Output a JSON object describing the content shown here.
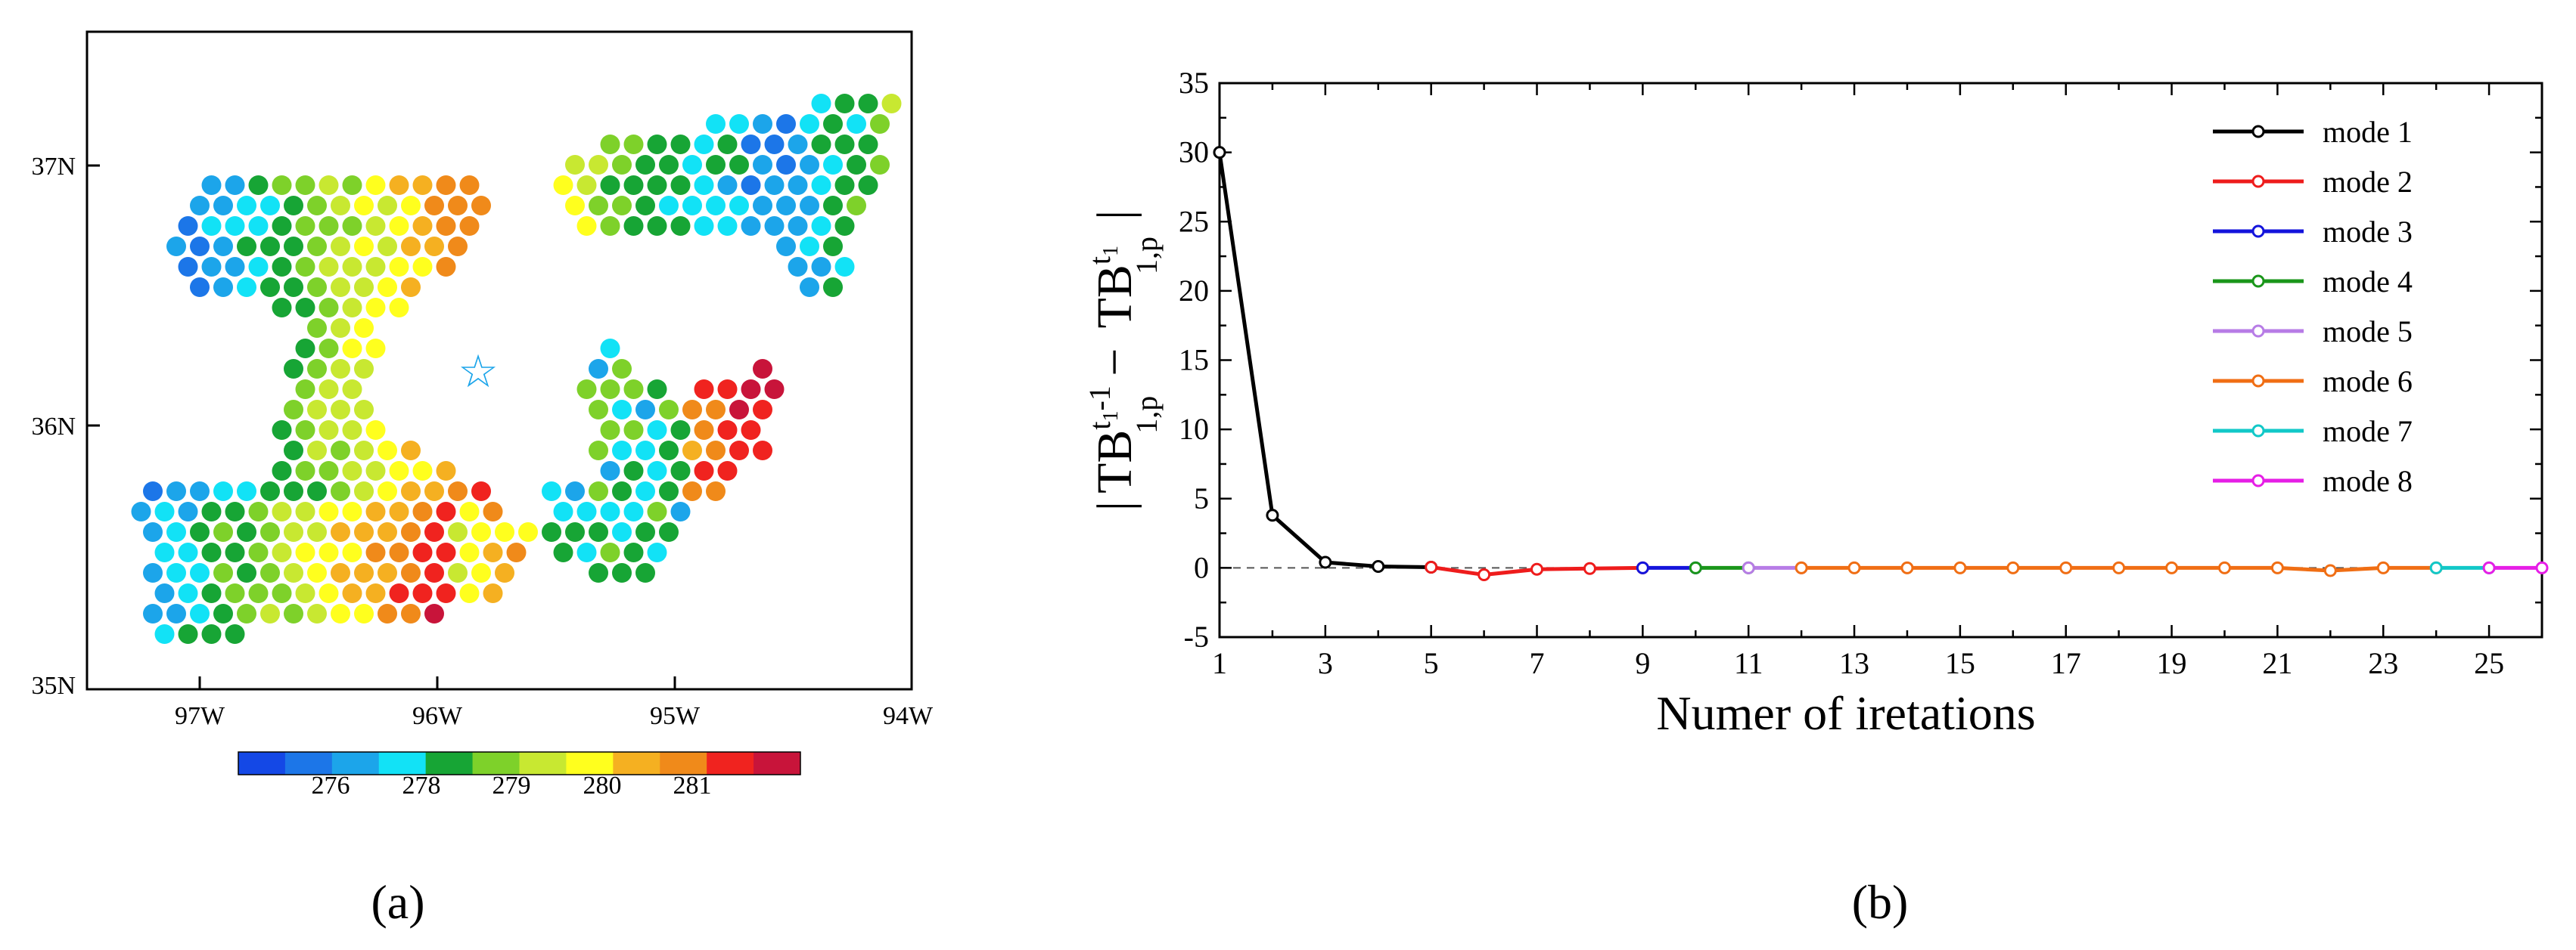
{
  "chart_data": [
    {
      "type": "scatter",
      "panel_label": "(a)",
      "title": "",
      "x_ticks": [
        "97W",
        "96W",
        "95W",
        "94W"
      ],
      "y_ticks": [
        "35N",
        "36N",
        "37N"
      ],
      "xlim": [
        -97.5,
        -94.0
      ],
      "ylim": [
        35.0,
        37.5
      ],
      "marker_label": "☆",
      "marker_location": [
        -95.83,
        36.2
      ],
      "colorbar": {
        "colors": [
          "#1448e6",
          "#1c76e8",
          "#1ca5ea",
          "#12e2f6",
          "#17a535",
          "#7ed12a",
          "#c8e831",
          "#ffff1e",
          "#f5b021",
          "#f08a1a",
          "#f0231f",
          "#c8143a"
        ],
        "tick_labels": [
          "276",
          "278",
          "279",
          "280",
          "281"
        ]
      },
      "footprint_groups": [
        {
          "name": "north-west",
          "value_range": [
            276,
            281.5
          ]
        },
        {
          "name": "north-east",
          "value_range": [
            277,
            279.5
          ]
        },
        {
          "name": "south-west",
          "value_range": [
            278,
            281.8
          ]
        },
        {
          "name": "south-east",
          "value_range": [
            276.5,
            281.8
          ]
        }
      ]
    },
    {
      "type": "line",
      "panel_label": "(b)",
      "title": "",
      "xlabel": "Numer of iretations",
      "ylabel": {
        "bar": "|",
        "tb1": "TB",
        "sup1": "t",
        "sup1sub": "1",
        "sup1rest": "-1",
        "sub1": "1,p",
        "minus": "−",
        "tb2": "TB",
        "sup2": "t",
        "sup2sub": "1",
        "sub2": "1,p"
      },
      "xlim": [
        1,
        26
      ],
      "ylim": [
        -5,
        35
      ],
      "x_ticks": [
        "1",
        "3",
        "5",
        "7",
        "9",
        "11",
        "13",
        "15",
        "17",
        "19",
        "21",
        "23",
        "25"
      ],
      "y_ticks": [
        "-5",
        "0",
        "5",
        "10",
        "15",
        "20",
        "25",
        "30",
        "35"
      ],
      "reference_line": 0,
      "legend_placement": "top-right",
      "series": [
        {
          "name": "mode 1",
          "color": "#000000",
          "x": [
            1,
            2,
            3,
            4,
            5
          ],
          "values": [
            30,
            3.8,
            0.4,
            0.1,
            0.05
          ]
        },
        {
          "name": "mode 2",
          "color": "#ee1c1c",
          "x": [
            5,
            6,
            7,
            8,
            9
          ],
          "values": [
            0.05,
            -0.5,
            -0.1,
            -0.05,
            0
          ]
        },
        {
          "name": "mode 3",
          "color": "#1414dc",
          "x": [
            9,
            10
          ],
          "values": [
            0,
            0
          ]
        },
        {
          "name": "mode 4",
          "color": "#1a961a",
          "x": [
            10,
            11
          ],
          "values": [
            0,
            0
          ]
        },
        {
          "name": "mode 5",
          "color": "#b77ce6",
          "x": [
            11,
            12
          ],
          "values": [
            0,
            0
          ]
        },
        {
          "name": "mode 6",
          "color": "#f06e14",
          "x": [
            12,
            13,
            14,
            15,
            16,
            17,
            18,
            19,
            20,
            21,
            22,
            23,
            24
          ],
          "values": [
            0,
            0,
            0,
            0,
            0,
            0,
            0,
            0,
            0,
            0,
            -0.2,
            0,
            0
          ]
        },
        {
          "name": "mode 7",
          "color": "#12c8c8",
          "x": [
            24,
            25
          ],
          "values": [
            0,
            0
          ]
        },
        {
          "name": "mode 8",
          "color": "#e61ee6",
          "x": [
            25,
            26
          ],
          "values": [
            0,
            0
          ]
        }
      ]
    }
  ]
}
